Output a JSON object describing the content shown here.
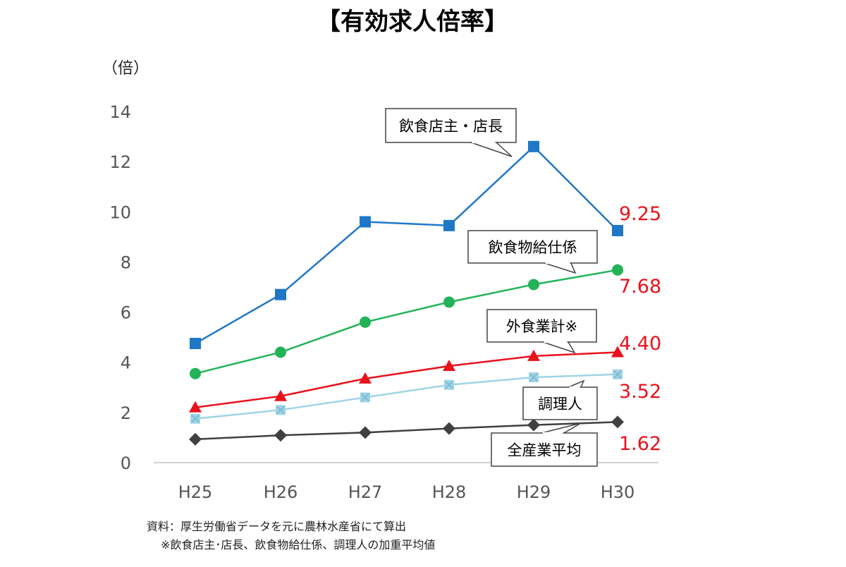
{
  "chart_data": {
    "type": "line",
    "title": "【有効求人倍率】",
    "ylabel": "（倍）",
    "xlabel": "",
    "ylim": [
      0,
      14
    ],
    "yticks": [
      0,
      2,
      4,
      6,
      8,
      10,
      12,
      14
    ],
    "grid": false,
    "categories": [
      "H25",
      "H26",
      "H27",
      "H28",
      "H29",
      "H30"
    ],
    "series": [
      {
        "name": "飲食店主・店長",
        "values": [
          4.75,
          6.7,
          9.6,
          9.45,
          12.6,
          9.25
        ],
        "color": "#1f77c8",
        "marker": "square"
      },
      {
        "name": "飲食物給仕係",
        "values": [
          3.55,
          4.4,
          5.6,
          6.4,
          7.1,
          7.68
        ],
        "color": "#22b358",
        "marker": "circle"
      },
      {
        "name": "外食業計※",
        "values": [
          2.2,
          2.65,
          3.35,
          3.85,
          4.25,
          4.4
        ],
        "color": "#e8121b",
        "marker": "triangle"
      },
      {
        "name": "調理人",
        "values": [
          1.75,
          2.1,
          2.6,
          3.1,
          3.4,
          3.52
        ],
        "color": "#9fd4e6",
        "marker": "x"
      },
      {
        "name": "全産業平均",
        "values": [
          0.93,
          1.09,
          1.2,
          1.36,
          1.5,
          1.62
        ],
        "color": "#404040",
        "marker": "diamond"
      }
    ],
    "end_labels": [
      "9.25",
      "7.68",
      "4.40",
      "3.52",
      "1.62"
    ],
    "source_lines": [
      "資料：厚生労働省データを元に農林水産省にて算出",
      "※飲食店主･店長、飲食物給仕係、調理人の加重平均値"
    ]
  }
}
